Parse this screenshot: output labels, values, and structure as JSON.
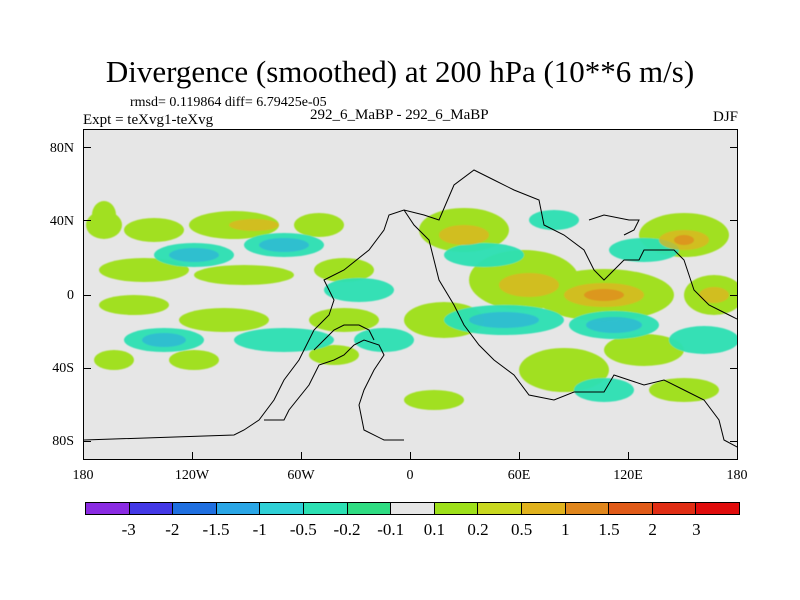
{
  "title": "Divergence (smoothed) at 200 hPa (10**6 m/s)",
  "stats": "rmsd= 0.119864 diff= 6.79425e-05",
  "expt": "Expt = teXvg1-teXvg",
  "center_label": "292_6_MaBP - 292_6_MaBP",
  "season": "DJF",
  "y_labels": [
    "80N",
    "40N",
    "0",
    "40S",
    "80S"
  ],
  "x_labels": [
    "180",
    "120W",
    "60W",
    "0",
    "60E",
    "120E",
    "180"
  ],
  "colorbar": {
    "colors": [
      "#8a2be2",
      "#4338e6",
      "#1f6fe0",
      "#2aa6e6",
      "#2fd0d6",
      "#2ce0b3",
      "#2fdc82",
      "#e6e6e6",
      "#9ee01a",
      "#c9d820",
      "#e0b21d",
      "#e0861c",
      "#e05a18",
      "#e02d14",
      "#e00c0c"
    ],
    "labels": [
      "-3",
      "-2",
      "-1.5",
      "-1",
      "-0.5",
      "-0.2",
      "-0.1",
      "0.1",
      "0.2",
      "0.5",
      "1",
      "1.5",
      "2",
      "3"
    ]
  }
}
